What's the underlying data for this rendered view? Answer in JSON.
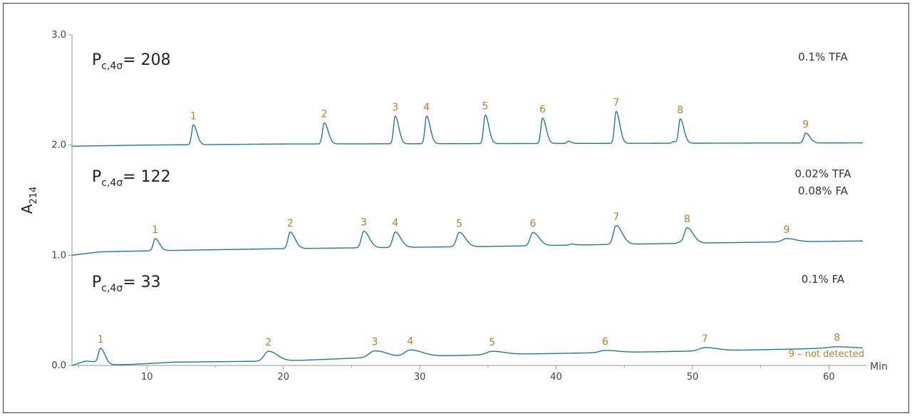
{
  "chart_data": {
    "type": "line",
    "ylabel": "A",
    "ylabel_sub": "214",
    "xunit": "Min",
    "xlim": [
      4.5,
      62.8
    ],
    "ylim": [
      0.0,
      3.0
    ],
    "xticks": [
      10,
      20,
      30,
      40,
      50,
      60
    ],
    "yticks": [
      "0.0",
      "1.0",
      "2.0",
      "3.0"
    ],
    "line_color": "#1f7a99",
    "label_color": "#c07a2c",
    "traces": [
      {
        "pc_prefix": "P",
        "pc_sub": "c,4σ",
        "pc_value": "= 208",
        "condition": [
          "0.1% TFA"
        ],
        "baseline": [
          [
            4.5,
            1.99
          ],
          [
            10,
            2.0
          ],
          [
            20,
            2.01
          ],
          [
            62.5,
            2.02
          ]
        ],
        "peaks": [
          {
            "label": "1",
            "x": 13.4,
            "height": 0.18,
            "width": 0.12
          },
          {
            "label": "2",
            "x": 23.0,
            "height": 0.19,
            "width": 0.13
          },
          {
            "label": "3",
            "x": 28.2,
            "height": 0.25,
            "width": 0.12
          },
          {
            "label": "4",
            "x": 30.5,
            "height": 0.25,
            "width": 0.12
          },
          {
            "label": "5",
            "x": 34.8,
            "height": 0.26,
            "width": 0.12
          },
          {
            "label": "6",
            "x": 39.0,
            "height": 0.23,
            "width": 0.12
          },
          {
            "label": "7",
            "x": 44.4,
            "height": 0.29,
            "width": 0.12
          },
          {
            "label": "8",
            "x": 49.1,
            "height": 0.22,
            "width": 0.12
          },
          {
            "label": "9",
            "x": 58.3,
            "height": 0.09,
            "width": 0.14
          }
        ],
        "minor_peaks": [
          {
            "x": 40.9,
            "height": 0.02,
            "width": 0.1
          },
          {
            "x": 48.6,
            "height": 0.015,
            "width": 0.1
          }
        ]
      },
      {
        "pc_prefix": "P",
        "pc_sub": "c,4σ",
        "pc_value": "= 122",
        "condition": [
          "0.02% TFA",
          "0.08% FA"
        ],
        "baseline": [
          [
            4.5,
            1.0
          ],
          [
            6.5,
            1.03
          ],
          [
            8,
            1.035
          ],
          [
            10,
            1.04
          ],
          [
            20,
            1.06
          ],
          [
            35,
            1.08
          ],
          [
            50,
            1.11
          ],
          [
            56,
            1.12
          ],
          [
            62.5,
            1.13
          ]
        ],
        "peaks": [
          {
            "label": "1",
            "x": 10.6,
            "height": 0.11,
            "width": 0.14
          },
          {
            "label": "2",
            "x": 20.5,
            "height": 0.15,
            "width": 0.16
          },
          {
            "label": "3",
            "x": 25.9,
            "height": 0.15,
            "width": 0.18
          },
          {
            "label": "4",
            "x": 28.2,
            "height": 0.14,
            "width": 0.18
          },
          {
            "label": "5",
            "x": 32.9,
            "height": 0.13,
            "width": 0.2
          },
          {
            "label": "6",
            "x": 38.3,
            "height": 0.12,
            "width": 0.2
          },
          {
            "label": "7",
            "x": 44.4,
            "height": 0.17,
            "width": 0.2
          },
          {
            "label": "8",
            "x": 49.6,
            "height": 0.14,
            "width": 0.2
          },
          {
            "label": "9",
            "x": 56.9,
            "height": 0.03,
            "width": 0.3
          }
        ],
        "minor_peaks": [
          {
            "x": 41.1,
            "height": 0.01,
            "width": 0.12
          },
          {
            "x": 49.0,
            "height": 0.01,
            "width": 0.12
          }
        ]
      },
      {
        "pc_prefix": "P",
        "pc_sub": "c,4σ",
        "pc_value": "= 33",
        "condition": [
          "0.1% FA"
        ],
        "note": "9 – not detected",
        "baseline": [
          [
            4.5,
            0.0
          ],
          [
            5.5,
            0.04
          ],
          [
            6.5,
            0.03
          ],
          [
            7.2,
            0.005
          ],
          [
            9,
            0.01
          ],
          [
            12,
            0.03
          ],
          [
            20,
            0.04
          ],
          [
            26,
            0.07
          ],
          [
            36,
            0.1
          ],
          [
            50,
            0.13
          ],
          [
            58,
            0.15
          ],
          [
            60.5,
            0.16
          ],
          [
            62.5,
            0.155
          ]
        ],
        "peaks": [
          {
            "label": "1",
            "x": 6.6,
            "height": 0.13,
            "width": 0.15
          },
          {
            "label": "2",
            "x": 18.9,
            "height": 0.09,
            "width": 0.3
          },
          {
            "label": "3",
            "x": 26.7,
            "height": 0.06,
            "width": 0.4
          },
          {
            "label": "4",
            "x": 29.3,
            "height": 0.06,
            "width": 0.4
          },
          {
            "label": "5",
            "x": 35.3,
            "height": 0.03,
            "width": 0.4
          },
          {
            "label": "6",
            "x": 43.6,
            "height": 0.02,
            "width": 0.4
          },
          {
            "label": "7",
            "x": 50.9,
            "height": 0.03,
            "width": 0.4
          },
          {
            "label": "8",
            "x": 60.6,
            "height": 0.01,
            "width": 0.6
          }
        ],
        "minor_peaks": []
      }
    ]
  }
}
